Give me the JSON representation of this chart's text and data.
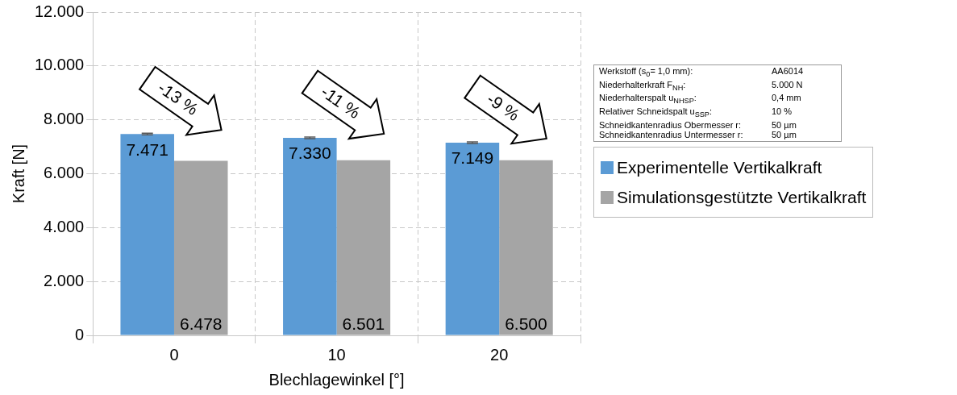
{
  "chart_data": {
    "type": "bar",
    "xlabel": "Blechlagewinkel [°]",
    "ylabel": "Kraft [N]",
    "categories": [
      "0",
      "10",
      "20"
    ],
    "series": [
      {
        "name": "Experimentelle Vertikalkraft",
        "color": "#5b9bd5",
        "values": [
          7471,
          7330,
          7149
        ],
        "value_labels": [
          "7.471",
          "7.330",
          "7.149"
        ],
        "errors": [
          30,
          30,
          30
        ]
      },
      {
        "name": "Simulationsgestützte Vertikalkraft",
        "color": "#a5a5a5",
        "values": [
          6478,
          6501,
          6500
        ],
        "value_labels": [
          "6.478",
          "6.501",
          "6.500"
        ]
      }
    ],
    "ylim": [
      0,
      12000
    ],
    "yticks": [
      {
        "value": 0,
        "label": "0"
      },
      {
        "value": 2000,
        "label": "2.000"
      },
      {
        "value": 4000,
        "label": "4.000"
      },
      {
        "value": 6000,
        "label": "6.000"
      },
      {
        "value": 8000,
        "label": "8.000"
      },
      {
        "value": 10000,
        "label": "10.000"
      },
      {
        "value": 12000,
        "label": "12.000"
      }
    ],
    "grid": true,
    "legend": "right",
    "annotations": [
      "-13 %",
      "-11 %",
      "-9 %",
      "Werkstoff (s$_{0}$= 1,0 mm):",
      "AA6014",
      "Niederhalterkraft F$_{NH}$:",
      "5.000 N",
      "Niederhalterspalt u$_{NHSP}$:",
      "0,4 mm",
      "Relativer Schneidspalt u$_{SSP}$:",
      "10 %",
      "Schneidkantenradius Obermesser r:",
      "50 µm",
      "Schneidkantenradius Untermesser r:",
      "50 µm"
    ]
  }
}
